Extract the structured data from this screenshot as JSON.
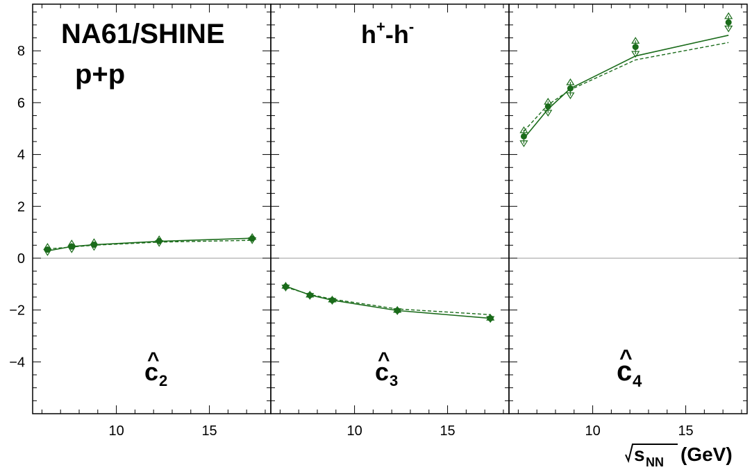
{
  "chart_data": {
    "type": "scatter",
    "experiment": "NA61/SHINE",
    "system": "p+p",
    "pair": {
      "base": "h",
      "sup1": "+",
      "sep": "-",
      "base2": "h",
      "sup2": "-"
    },
    "xlabel": {
      "root_symbol": "√",
      "var": "s",
      "sub": "NN",
      "unit": "(GeV)"
    },
    "x_ticks": [
      "10",
      "15"
    ],
    "y_ticks": [
      "−4",
      "−2",
      "0",
      "2",
      "4",
      "6",
      "8"
    ],
    "ylim": [
      -6.0,
      9.8
    ],
    "xlim": [
      5.5,
      18.3
    ],
    "zero_line": true,
    "color": "#1a6b1a",
    "zero_line_color": "#999999",
    "panels": [
      {
        "label_base": "c",
        "label_hat": "^",
        "label_sub": "2",
        "x": [
          6.3,
          7.6,
          8.8,
          12.3,
          17.3
        ],
        "y": [
          0.33,
          0.45,
          0.52,
          0.66,
          0.76
        ],
        "up": [
          0.45,
          0.58,
          0.63,
          0.74,
          0.83
        ],
        "down": [
          0.22,
          0.33,
          0.42,
          0.57,
          0.68
        ],
        "model_solid": [
          0.28,
          0.45,
          0.52,
          0.65,
          0.77
        ],
        "model_dashed": [
          0.36,
          0.43,
          0.5,
          0.62,
          0.69
        ]
      },
      {
        "label_base": "c",
        "label_hat": "^",
        "label_sub": "3",
        "x": [
          6.3,
          7.6,
          8.8,
          12.3,
          17.3
        ],
        "y": [
          -1.1,
          -1.43,
          -1.62,
          -2.02,
          -2.32
        ],
        "up": [
          -1.05,
          -1.39,
          -1.58,
          -1.98,
          -2.28
        ],
        "down": [
          -1.15,
          -1.47,
          -1.66,
          -2.06,
          -2.36
        ],
        "model_solid": [
          -1.08,
          -1.42,
          -1.62,
          -2.02,
          -2.32
        ],
        "model_dashed": [
          -1.12,
          -1.4,
          -1.58,
          -1.96,
          -2.18
        ]
      },
      {
        "label_base": "c",
        "label_hat": "^",
        "label_sub": "4",
        "x": [
          6.3,
          7.6,
          8.8,
          12.3,
          17.3
        ],
        "y": [
          4.7,
          5.85,
          6.55,
          8.15,
          9.1
        ],
        "up": [
          4.95,
          6.05,
          6.8,
          8.4,
          9.35
        ],
        "down": [
          4.42,
          5.6,
          6.27,
          7.87,
          8.85
        ],
        "model_solid": [
          4.62,
          5.75,
          6.55,
          7.8,
          8.6
        ],
        "model_dashed": [
          4.9,
          5.92,
          6.5,
          7.65,
          8.32
        ]
      }
    ]
  }
}
